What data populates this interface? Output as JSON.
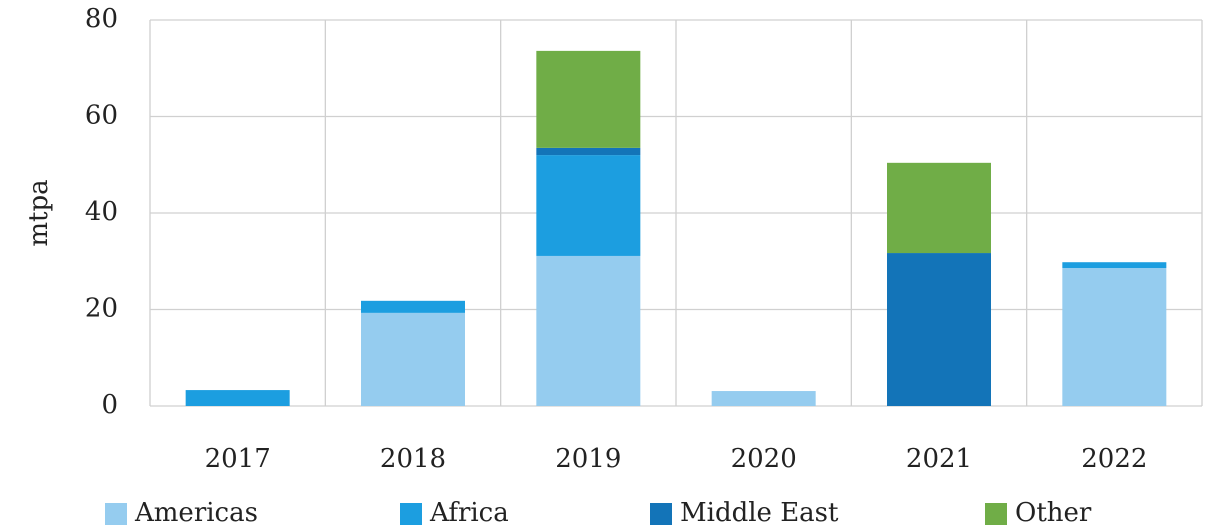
{
  "chart_data": {
    "type": "stacked-bar",
    "y_label": "mtpa",
    "categories": [
      "2017",
      "2018",
      "2019",
      "2020",
      "2021",
      "2022"
    ],
    "series": [
      {
        "name": "Americas",
        "color": "#95ccef",
        "values": [
          0,
          19.3,
          31.1,
          3.1,
          0,
          28.6
        ]
      },
      {
        "name": "Africa",
        "color": "#1c9ee0",
        "values": [
          3.3,
          2.5,
          20.9,
          0,
          0,
          1.2
        ]
      },
      {
        "name": "Middle East",
        "color": "#1374b8",
        "values": [
          0,
          0,
          1.5,
          0,
          31.7,
          0
        ]
      },
      {
        "name": "Other",
        "color": "#70ad47",
        "values": [
          0,
          0,
          20.1,
          0,
          18.7,
          0
        ]
      }
    ],
    "ylim": [
      0,
      80
    ],
    "yticks": [
      0,
      20,
      40,
      60,
      80
    ],
    "grid": true
  }
}
